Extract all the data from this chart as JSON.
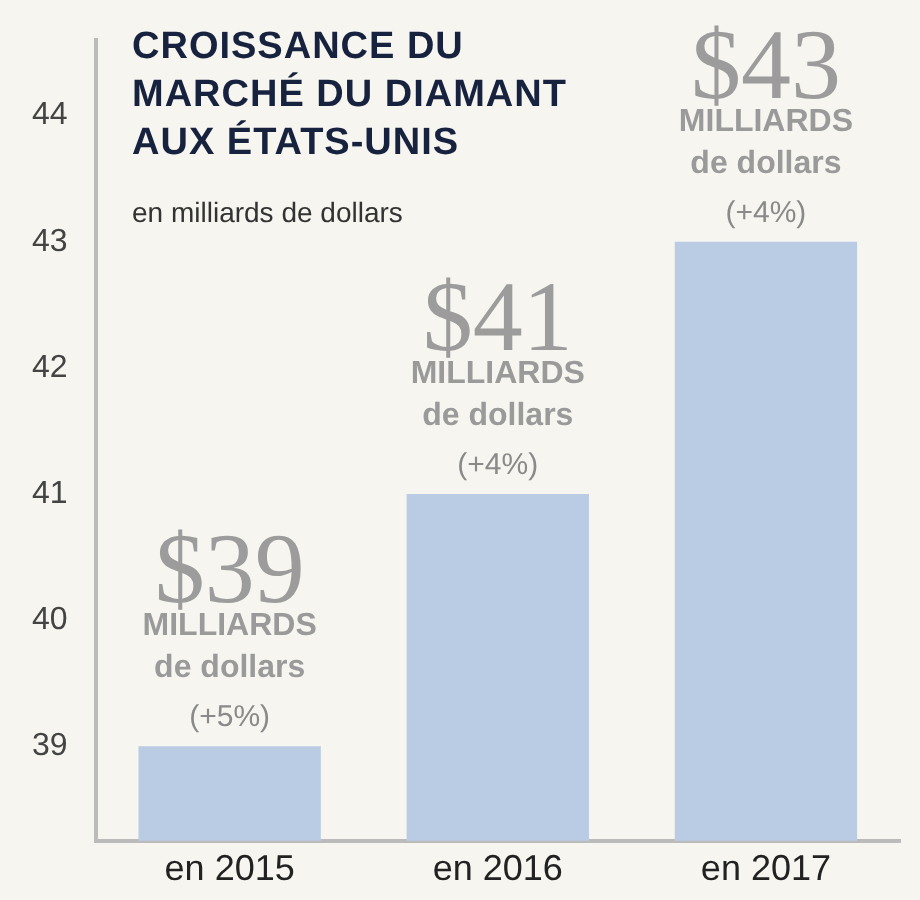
{
  "chart_data": {
    "type": "bar",
    "title": "CROISSANCE DU MARCHÉ DU DIAMANT AUX ÉTATS-UNIS",
    "subtitle": "en milliards de dollars",
    "categories": [
      "en 2015",
      "en 2016",
      "en 2017"
    ],
    "values": [
      39,
      41,
      43
    ],
    "color": "#b9cce4",
    "value_labels": [
      "$39",
      "$41",
      "$43"
    ],
    "ylim": [
      38.25,
      44.6
    ],
    "yticks": [
      39,
      40,
      41,
      42,
      43,
      44
    ],
    "grid": false,
    "annotations": [
      "MILLIARDS",
      "de dollars",
      "(+5%)",
      "MILLIARDS",
      "de dollars",
      "(+4%)",
      "MILLIARDS",
      "de dollars",
      "(+4%)"
    ]
  }
}
